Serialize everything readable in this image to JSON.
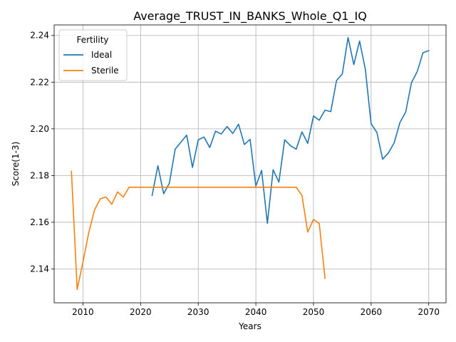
{
  "chart_data": {
    "type": "line",
    "title": "Average_TRUST_IN_BANKS_Whole_Q1_IQ",
    "xlabel": "Years",
    "ylabel": "Score(1-3)",
    "xlim": [
      2005,
      2073
    ],
    "ylim": [
      2.1255,
      2.2445
    ],
    "xticks": [
      2010,
      2020,
      2030,
      2040,
      2050,
      2060,
      2070
    ],
    "xtick_labels": [
      "2010",
      "2020",
      "2030",
      "2040",
      "2050",
      "2060",
      "2070"
    ],
    "yticks": [
      2.14,
      2.16,
      2.18,
      2.2,
      2.22,
      2.24
    ],
    "ytick_labels": [
      "2.14",
      "2.16",
      "2.18",
      "2.20",
      "2.22",
      "2.24"
    ],
    "grid": true,
    "legend": {
      "title": "Fertility",
      "placement": "top-left"
    },
    "series": [
      {
        "name": "Ideal",
        "color": "#1f77b4",
        "x": [
          2022,
          2023,
          2024,
          2025,
          2026,
          2027,
          2028,
          2029,
          2030,
          2031,
          2032,
          2033,
          2034,
          2035,
          2036,
          2037,
          2038,
          2039,
          2040,
          2041,
          2042,
          2043,
          2044,
          2045,
          2046,
          2047,
          2048,
          2049,
          2050,
          2051,
          2052,
          2053,
          2054,
          2055,
          2056,
          2057,
          2058,
          2059,
          2060,
          2061,
          2062,
          2063,
          2064,
          2065,
          2066,
          2067,
          2068,
          2069,
          2070
        ],
        "y": [
          2.1715,
          2.1842,
          2.1722,
          2.1768,
          2.1913,
          2.1943,
          2.1973,
          2.1835,
          2.1953,
          2.1965,
          2.192,
          2.199,
          2.1978,
          2.201,
          2.198,
          2.202,
          2.1933,
          2.1955,
          2.1755,
          2.1822,
          2.1595,
          2.1825,
          2.1772,
          2.1953,
          2.1928,
          2.1913,
          2.1987,
          2.1938,
          2.2055,
          2.2037,
          2.208,
          2.2074,
          2.2207,
          2.2235,
          2.2391,
          2.2275,
          2.2376,
          2.2255,
          2.2022,
          2.1985,
          2.187,
          2.1897,
          2.194,
          2.2027,
          2.2072,
          2.2197,
          2.2245,
          2.2326,
          2.2335
        ]
      },
      {
        "name": "Sterile",
        "color": "#ff7f0e",
        "x": [
          2008,
          2009,
          2010,
          2011,
          2012,
          2013,
          2014,
          2015,
          2016,
          2017,
          2018,
          2019,
          2020,
          2021,
          2022,
          2023,
          2024,
          2025,
          2026,
          2027,
          2028,
          2029,
          2030,
          2031,
          2032,
          2033,
          2034,
          2035,
          2036,
          2037,
          2038,
          2039,
          2040,
          2041,
          2042,
          2043,
          2044,
          2045,
          2046,
          2047,
          2048,
          2049,
          2050,
          2051,
          2052
        ],
        "y": [
          2.1818,
          2.1312,
          2.143,
          2.1555,
          2.1652,
          2.17,
          2.1708,
          2.1677,
          2.173,
          2.1708,
          2.175,
          2.175,
          2.175,
          2.175,
          2.175,
          2.175,
          2.175,
          2.175,
          2.175,
          2.175,
          2.175,
          2.175,
          2.175,
          2.175,
          2.175,
          2.175,
          2.175,
          2.175,
          2.175,
          2.175,
          2.175,
          2.175,
          2.175,
          2.175,
          2.175,
          2.175,
          2.175,
          2.175,
          2.175,
          2.175,
          2.1715,
          2.1558,
          2.1612,
          2.1595,
          2.136
        ]
      }
    ]
  }
}
